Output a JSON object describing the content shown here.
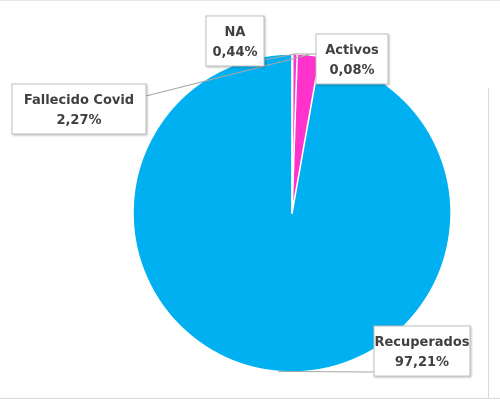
{
  "chart_data": {
    "type": "pie",
    "categories": [
      "Recuperados",
      "Fallecido Covid",
      "NA",
      "Activos"
    ],
    "values": [
      97.21,
      2.27,
      0.44,
      0.08
    ],
    "value_labels": [
      "97,21%",
      "2,27%",
      "0,44%",
      "0,08%"
    ],
    "colors": [
      "#00b0f0",
      "#ff33cc",
      "#ff33cc",
      "#f2c38a"
    ],
    "slice_border": "#ffffff",
    "start": "12 o'clock",
    "direction": "counterclockwise",
    "legend": "none",
    "data_labels": "callouts with leader lines"
  }
}
